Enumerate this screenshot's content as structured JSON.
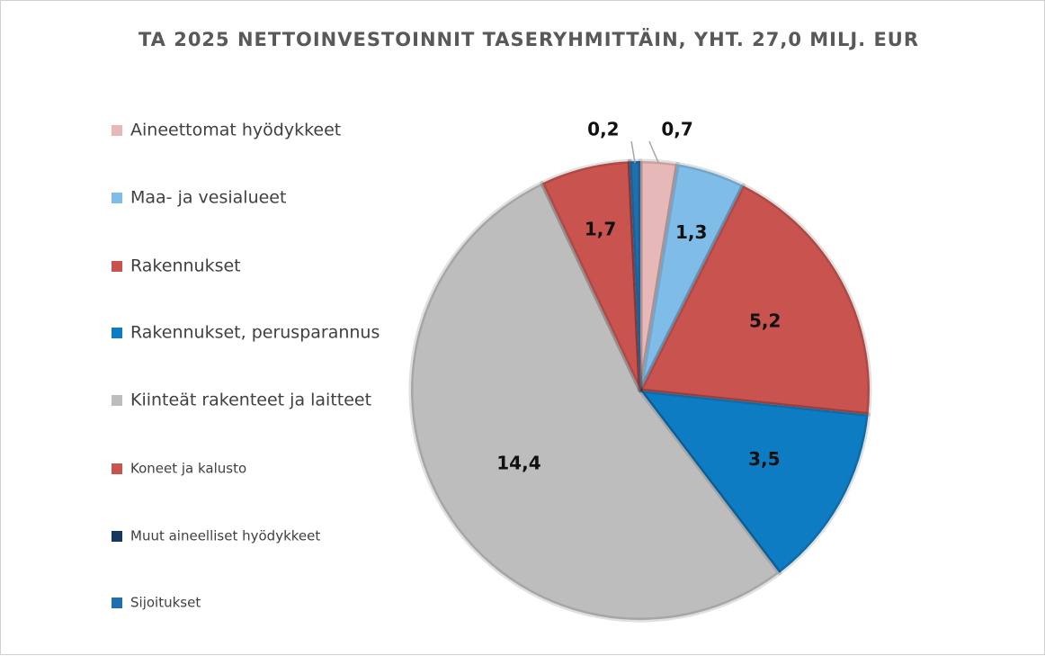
{
  "chart_data": {
    "type": "pie",
    "title": "TA 2025 NETTOINVESTOINNIT TASERYHMITTÄIN, YHT. 27,0 MILJ. EUR",
    "categories": [
      "Aineettomat hyödykkeet",
      "Maa- ja vesialueet",
      "Rakennukset",
      "Rakennukset, perusparannus",
      "Kiinteät rakenteet ja laitteet",
      "Koneet ja kalusto",
      "Muut aineelliset hyödykkeet",
      "Sijoitukset"
    ],
    "values": [
      0.7,
      1.3,
      5.2,
      3.5,
      14.4,
      1.7,
      0,
      0.2
    ],
    "value_labels": [
      "0,7",
      "1,3",
      "5,2",
      "3,5",
      "14,4",
      "1,7",
      null,
      "0,2"
    ],
    "colors": [
      "#e6b9b8",
      "#7fbde8",
      "#c9534f",
      "#0e7cc2",
      "#bdbdbd",
      "#c9534f",
      "#17375e",
      "#1f6fae"
    ],
    "legend": "left"
  }
}
